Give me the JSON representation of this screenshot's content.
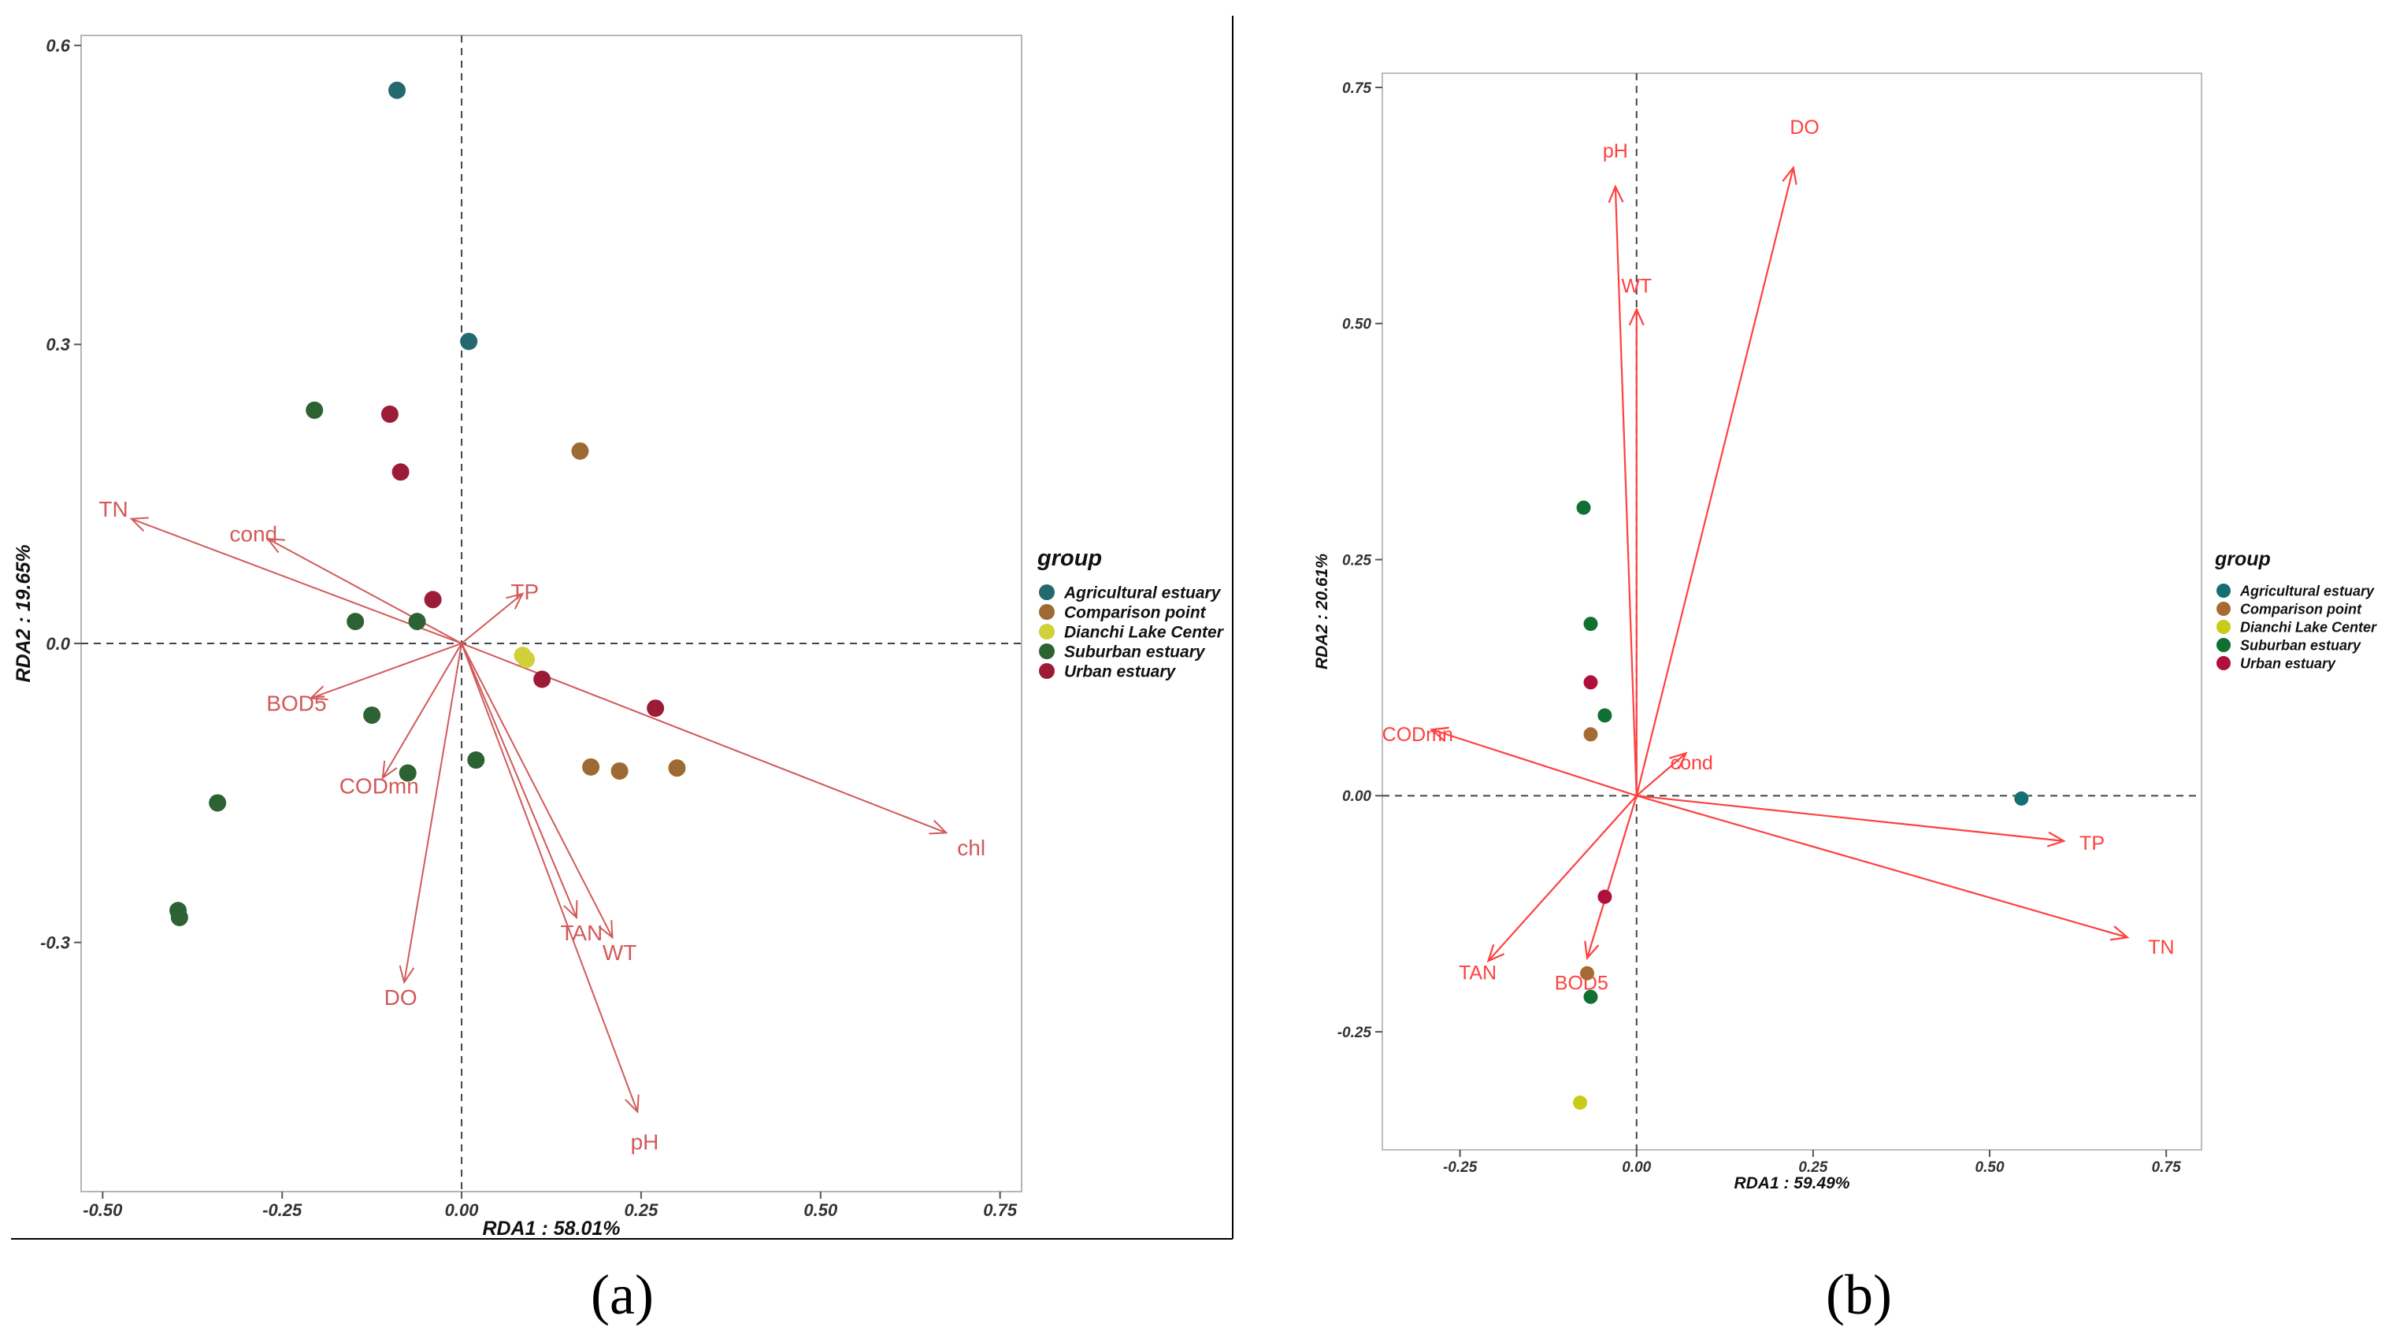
{
  "chart_data": [
    {
      "type": "scatter",
      "panel_label": "(a)",
      "xlabel": "RDA1 : 58.01%",
      "ylabel": "RDA2 : 19.65%",
      "xlim": [
        -0.53,
        0.78
      ],
      "ylim": [
        -0.55,
        0.61
      ],
      "xticks": [
        "-0.50",
        "-0.25",
        "0.00",
        "0.25",
        "0.50",
        "0.75"
      ],
      "yticks": [
        "-0.3",
        "0.0",
        "0.3",
        "0.6"
      ],
      "legend_title": "group",
      "vector_color": "#d25a5a",
      "groups": [
        {
          "name": "Agricultural estuary",
          "color": "#23696e",
          "points": [
            [
              -0.09,
              0.555
            ],
            [
              0.01,
              0.303
            ]
          ]
        },
        {
          "name": "Comparison point",
          "color": "#9c6a32",
          "points": [
            [
              0.165,
              0.193
            ],
            [
              0.18,
              -0.124
            ],
            [
              0.22,
              -0.128
            ],
            [
              0.3,
              -0.125
            ]
          ]
        },
        {
          "name": "Dianchi Lake Center",
          "color": "#cfd03a",
          "points": [
            [
              0.085,
              -0.012
            ],
            [
              0.09,
              -0.016
            ]
          ]
        },
        {
          "name": "Suburban estuary",
          "color": "#2d6232",
          "points": [
            [
              -0.205,
              0.234
            ],
            [
              -0.148,
              0.022
            ],
            [
              -0.062,
              0.022
            ],
            [
              -0.125,
              -0.072
            ],
            [
              -0.075,
              -0.13
            ],
            [
              0.02,
              -0.117
            ],
            [
              -0.34,
              -0.16
            ],
            [
              -0.395,
              -0.268
            ],
            [
              -0.393,
              -0.275
            ]
          ]
        },
        {
          "name": "Urban estuary",
          "color": "#9c1c38",
          "points": [
            [
              -0.1,
              0.23
            ],
            [
              -0.085,
              0.172
            ],
            [
              -0.04,
              0.044
            ],
            [
              0.112,
              -0.036
            ],
            [
              0.27,
              -0.065
            ]
          ]
        }
      ],
      "vectors": [
        {
          "label": "TN",
          "end": [
            -0.46,
            0.125
          ],
          "label_pos": [
            -0.485,
            0.135
          ]
        },
        {
          "label": "cond",
          "end": [
            -0.27,
            0.105
          ],
          "label_pos": [
            -0.29,
            0.11
          ]
        },
        {
          "label": "TP",
          "end": [
            0.085,
            0.05
          ],
          "label_pos": [
            0.088,
            0.052
          ]
        },
        {
          "label": "BOD5",
          "end": [
            -0.21,
            -0.055
          ],
          "label_pos": [
            -0.23,
            -0.06
          ]
        },
        {
          "label": "CODmn",
          "end": [
            -0.11,
            -0.135
          ],
          "label_pos": [
            -0.115,
            -0.143
          ]
        },
        {
          "label": "DO",
          "end": [
            -0.08,
            -0.34
          ],
          "label_pos": [
            -0.085,
            -0.355
          ]
        },
        {
          "label": "TAN",
          "end": [
            0.16,
            -0.275
          ],
          "label_pos": [
            0.167,
            -0.29
          ]
        },
        {
          "label": "WT",
          "end": [
            0.21,
            -0.295
          ],
          "label_pos": [
            0.22,
            -0.31
          ]
        },
        {
          "label": "pH",
          "end": [
            0.245,
            -0.47
          ],
          "label_pos": [
            0.255,
            -0.5
          ]
        },
        {
          "label": "chl",
          "end": [
            0.675,
            -0.19
          ],
          "label_pos": [
            0.71,
            -0.205
          ]
        }
      ]
    },
    {
      "type": "scatter",
      "panel_label": "(b)",
      "xlabel": "RDA1 : 59.49%",
      "ylabel": "RDA2 : 20.61%",
      "xlim": [
        -0.36,
        0.8
      ],
      "ylim": [
        -0.375,
        0.765
      ],
      "xticks": [
        "-0.25",
        "0.00",
        "0.25",
        "0.50",
        "0.75"
      ],
      "yticks": [
        "-0.25",
        "0.00",
        "0.25",
        "0.50",
        "0.75"
      ],
      "legend_title": "group",
      "vector_color": "#ff4040",
      "groups": [
        {
          "name": "Agricultural estuary",
          "color": "#136f73",
          "points": [
            [
              0.545,
              -0.003
            ]
          ]
        },
        {
          "name": "Comparison point",
          "color": "#a86a35",
          "points": [
            [
              -0.065,
              0.065
            ],
            [
              -0.07,
              -0.188
            ]
          ]
        },
        {
          "name": "Dianchi Lake Center",
          "color": "#c8cc18",
          "points": [
            [
              -0.08,
              -0.325
            ]
          ]
        },
        {
          "name": "Suburban estuary",
          "color": "#0f7032",
          "points": [
            [
              -0.075,
              0.305
            ],
            [
              -0.065,
              0.182
            ],
            [
              -0.045,
              0.085
            ],
            [
              -0.065,
              -0.213
            ]
          ]
        },
        {
          "name": "Urban estuary",
          "color": "#b0103c",
          "points": [
            [
              -0.065,
              0.12
            ],
            [
              -0.045,
              -0.107
            ]
          ]
        }
      ],
      "vectors": [
        {
          "label": "DO",
          "end": [
            0.222,
            0.665
          ],
          "label_pos": [
            0.238,
            0.708
          ]
        },
        {
          "label": "pH",
          "end": [
            -0.03,
            0.645
          ],
          "label_pos": [
            -0.03,
            0.683
          ]
        },
        {
          "label": "WT",
          "end": [
            0.0,
            0.515
          ],
          "label_pos": [
            0.0,
            0.54
          ]
        },
        {
          "label": "cond",
          "end": [
            0.07,
            0.045
          ],
          "label_pos": [
            0.078,
            0.035
          ]
        },
        {
          "label": "CODmn",
          "end": [
            -0.29,
            0.07
          ],
          "label_pos": [
            -0.31,
            0.065
          ]
        },
        {
          "label": "TP",
          "end": [
            0.605,
            -0.048
          ],
          "label_pos": [
            0.645,
            -0.05
          ]
        },
        {
          "label": "TN",
          "end": [
            0.695,
            -0.15
          ],
          "label_pos": [
            0.743,
            -0.16
          ]
        },
        {
          "label": "TAN",
          "end": [
            -0.21,
            -0.175
          ],
          "label_pos": [
            -0.225,
            -0.187
          ]
        },
        {
          "label": "BOD5",
          "end": [
            -0.07,
            -0.172
          ],
          "label_pos": [
            -0.078,
            -0.198
          ]
        }
      ]
    }
  ]
}
